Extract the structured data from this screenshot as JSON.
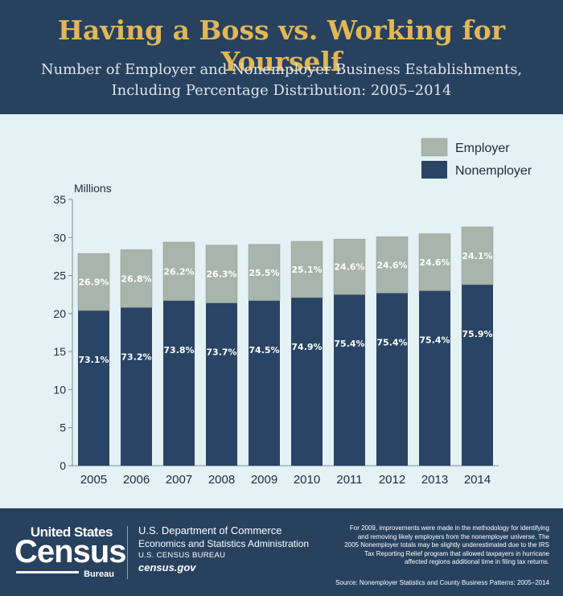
{
  "header": {
    "title": "Having a Boss vs. Working for Yourself",
    "subtitle_line1": "Number of Employer and Nonemployer Business Establishments,",
    "subtitle_line2": "Including Percentage Distribution: 2005–2014"
  },
  "colors": {
    "background": "#27415f",
    "title": "#e3b754",
    "panel": "#e4f2f6",
    "employer": "#a7b5aa",
    "nonemployer": "#2a4465"
  },
  "chart_data": {
    "type": "bar",
    "stacked": true,
    "ylabel": "Millions",
    "ylim": [
      0,
      35
    ],
    "yticks": [
      0,
      5,
      10,
      15,
      20,
      25,
      30,
      35
    ],
    "grid": false,
    "legend_position": "top-right",
    "categories": [
      "2005",
      "2006",
      "2007",
      "2008",
      "2009",
      "2010",
      "2011",
      "2012",
      "2013",
      "2014"
    ],
    "series": [
      {
        "name": "Nonemployer",
        "values": [
          20.4,
          20.8,
          21.7,
          21.4,
          21.7,
          22.1,
          22.5,
          22.7,
          23.0,
          23.8
        ],
        "labels": [
          "73.1%",
          "73.2%",
          "73.8%",
          "73.7%",
          "74.5%",
          "74.9%",
          "75.4%",
          "75.4%",
          "75.4%",
          "75.9%"
        ]
      },
      {
        "name": "Employer",
        "values": [
          7.5,
          7.6,
          7.7,
          7.6,
          7.4,
          7.4,
          7.3,
          7.4,
          7.5,
          7.6
        ],
        "labels": [
          "26.9%",
          "26.8%",
          "26.2%",
          "26.3%",
          "25.5%",
          "25.1%",
          "24.6%",
          "24.6%",
          "24.6%",
          "24.1%"
        ]
      }
    ]
  },
  "legend": {
    "employer": "Employer",
    "nonemployer": "Nonemployer"
  },
  "footer": {
    "logo_top": "United States",
    "logo_main": "Census",
    "logo_bottom": "Bureau",
    "dept_line1": "U.S. Department of Commerce",
    "dept_line2": "Economics and Statistics Administration",
    "dept_line3": "U.S. CENSUS BUREAU",
    "dept_line4": "census.gov",
    "note_line1": "For 2009, improvements were made in the methodology for identifying",
    "note_line2": "and removing likely employers from the nonemployer universe. The",
    "note_line3": "2005 Nonemployer totals may be slightly underestimated due to the IRS",
    "note_line4": "Tax Reporting Relief program that allowed taxpayers in hurricane",
    "note_line5": "affected regions additional time in filing tax returns.",
    "source": "Source: Nonemployer Statistics and County Business Patterns: 2005–2014"
  }
}
